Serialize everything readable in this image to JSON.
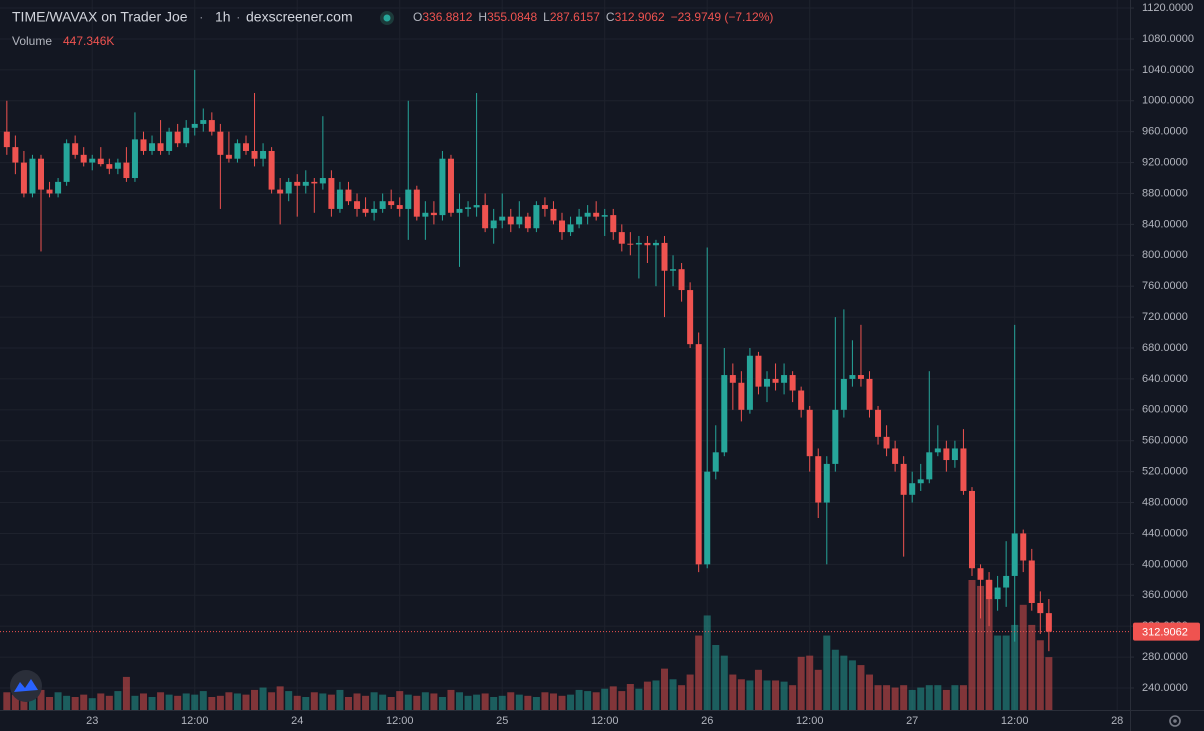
{
  "chart_data": {
    "type": "candlestick",
    "title": "TIME/WAVAX on Trader Joe",
    "interval": "1h",
    "source": "dexscreener.com",
    "ohlc_keys": [
      "O",
      "H",
      "L",
      "C"
    ],
    "change": "−23.9749 (−7.12%)",
    "volume_title": "Volume",
    "volume_label": "447.346K",
    "colors": {
      "up": "#26a69a",
      "down": "#ef5350"
    },
    "xlim": [
      -0.8,
      131.5
    ],
    "xticks": [
      {
        "value": 10,
        "label": "23"
      },
      {
        "value": 22,
        "label": "12:00"
      },
      {
        "value": 34,
        "label": "24"
      },
      {
        "value": 46,
        "label": "12:00"
      },
      {
        "value": 58,
        "label": "25"
      },
      {
        "value": 70,
        "label": "12:00"
      },
      {
        "value": 82,
        "label": "26"
      },
      {
        "value": 94,
        "label": "12:00"
      },
      {
        "value": 106,
        "label": "27"
      },
      {
        "value": 118,
        "label": "12:00"
      },
      {
        "value": 130,
        "label": "28"
      }
    ],
    "ylim": [
      211.5,
      1130.4
    ],
    "yticks": [
      {
        "value": 240,
        "label": "240.0000"
      },
      {
        "value": 280,
        "label": "280.0000"
      },
      {
        "value": 320,
        "label": "320.0000"
      },
      {
        "value": 360,
        "label": "360.0000"
      },
      {
        "value": 400,
        "label": "400.0000"
      },
      {
        "value": 440,
        "label": "440.0000"
      },
      {
        "value": 480,
        "label": "480.0000"
      },
      {
        "value": 520,
        "label": "520.0000"
      },
      {
        "value": 560,
        "label": "560.0000"
      },
      {
        "value": 600,
        "label": "600.0000"
      },
      {
        "value": 640,
        "label": "640.0000"
      },
      {
        "value": 680,
        "label": "680.0000"
      },
      {
        "value": 720,
        "label": "720.0000"
      },
      {
        "value": 760,
        "label": "760.0000"
      },
      {
        "value": 800,
        "label": "800.0000"
      },
      {
        "value": 840,
        "label": "840.0000"
      },
      {
        "value": 880,
        "label": "880.0000"
      },
      {
        "value": 920,
        "label": "920.0000"
      },
      {
        "value": 960,
        "label": "960.0000"
      },
      {
        "value": 1000,
        "label": "1000.0000"
      },
      {
        "value": 1040,
        "label": "1040.0000"
      },
      {
        "value": 1080,
        "label": "1080.0000"
      },
      {
        "value": 1120,
        "label": "1120.0000"
      }
    ],
    "candles": [
      [
        960,
        1000,
        930,
        940
      ],
      [
        940,
        955,
        905,
        920
      ],
      [
        920,
        935,
        875,
        880
      ],
      [
        880,
        930,
        875,
        925
      ],
      [
        925,
        930,
        805,
        885
      ],
      [
        885,
        895,
        875,
        880
      ],
      [
        880,
        900,
        875,
        895
      ],
      [
        895,
        950,
        890,
        945
      ],
      [
        945,
        955,
        925,
        930
      ],
      [
        930,
        940,
        915,
        920
      ],
      [
        920,
        930,
        910,
        925
      ],
      [
        925,
        940,
        915,
        918
      ],
      [
        918,
        925,
        905,
        912
      ],
      [
        912,
        925,
        905,
        920
      ],
      [
        920,
        940,
        895,
        900
      ],
      [
        900,
        985,
        895,
        950
      ],
      [
        950,
        960,
        930,
        935
      ],
      [
        935,
        955,
        930,
        945
      ],
      [
        945,
        975,
        930,
        935
      ],
      [
        935,
        965,
        930,
        960
      ],
      [
        960,
        970,
        940,
        945
      ],
      [
        945,
        975,
        940,
        965
      ],
      [
        965,
        1040,
        955,
        970
      ],
      [
        970,
        990,
        960,
        975
      ],
      [
        975,
        985,
        955,
        960
      ],
      [
        960,
        970,
        860,
        930
      ],
      [
        930,
        960,
        920,
        925
      ],
      [
        925,
        950,
        920,
        945
      ],
      [
        945,
        955,
        930,
        935
      ],
      [
        935,
        1010,
        915,
        925
      ],
      [
        925,
        945,
        915,
        935
      ],
      [
        935,
        940,
        880,
        885
      ],
      [
        885,
        900,
        840,
        880
      ],
      [
        880,
        900,
        870,
        895
      ],
      [
        895,
        905,
        850,
        890
      ],
      [
        890,
        910,
        880,
        895
      ],
      [
        895,
        900,
        855,
        893
      ],
      [
        893,
        980,
        885,
        900
      ],
      [
        900,
        910,
        850,
        860
      ],
      [
        860,
        895,
        855,
        885
      ],
      [
        885,
        895,
        865,
        870
      ],
      [
        870,
        880,
        850,
        860
      ],
      [
        860,
        875,
        850,
        855
      ],
      [
        855,
        870,
        845,
        860
      ],
      [
        860,
        880,
        855,
        870
      ],
      [
        870,
        885,
        860,
        865
      ],
      [
        865,
        875,
        850,
        860
      ],
      [
        860,
        1000,
        820,
        885
      ],
      [
        885,
        890,
        845,
        850
      ],
      [
        850,
        870,
        820,
        855
      ],
      [
        855,
        870,
        840,
        852
      ],
      [
        852,
        935,
        845,
        925
      ],
      [
        925,
        930,
        850,
        855
      ],
      [
        855,
        880,
        785,
        860
      ],
      [
        860,
        870,
        850,
        862
      ],
      [
        862,
        1010,
        850,
        865
      ],
      [
        865,
        880,
        830,
        835
      ],
      [
        835,
        860,
        815,
        845
      ],
      [
        845,
        880,
        835,
        850
      ],
      [
        850,
        860,
        830,
        840
      ],
      [
        840,
        870,
        835,
        850
      ],
      [
        850,
        855,
        830,
        835
      ],
      [
        835,
        870,
        830,
        865
      ],
      [
        865,
        875,
        850,
        860
      ],
      [
        860,
        870,
        840,
        845
      ],
      [
        845,
        855,
        820,
        830
      ],
      [
        830,
        850,
        825,
        840
      ],
      [
        840,
        860,
        835,
        850
      ],
      [
        850,
        865,
        840,
        855
      ],
      [
        855,
        870,
        845,
        850
      ],
      [
        850,
        860,
        825,
        852
      ],
      [
        852,
        860,
        820,
        830
      ],
      [
        830,
        840,
        805,
        815
      ],
      [
        815,
        830,
        800,
        814
      ],
      [
        814,
        825,
        770,
        816
      ],
      [
        816,
        825,
        790,
        813
      ],
      [
        813,
        820,
        760,
        816
      ],
      [
        816,
        825,
        720,
        780
      ],
      [
        780,
        800,
        760,
        782
      ],
      [
        782,
        790,
        740,
        755
      ],
      [
        755,
        765,
        680,
        685
      ],
      [
        685,
        700,
        390,
        400
      ],
      [
        400,
        810,
        395,
        520
      ],
      [
        520,
        580,
        510,
        545
      ],
      [
        545,
        680,
        540,
        645
      ],
      [
        645,
        660,
        600,
        635
      ],
      [
        635,
        650,
        585,
        600
      ],
      [
        600,
        680,
        595,
        670
      ],
      [
        670,
        675,
        620,
        630
      ],
      [
        630,
        650,
        610,
        640
      ],
      [
        640,
        660,
        625,
        635
      ],
      [
        635,
        660,
        620,
        645
      ],
      [
        645,
        650,
        610,
        625
      ],
      [
        625,
        630,
        590,
        600
      ],
      [
        600,
        605,
        520,
        540
      ],
      [
        540,
        550,
        460,
        480
      ],
      [
        480,
        540,
        400,
        530
      ],
      [
        530,
        720,
        520,
        600
      ],
      [
        600,
        730,
        590,
        640
      ],
      [
        640,
        690,
        630,
        645
      ],
      [
        645,
        710,
        630,
        640
      ],
      [
        640,
        650,
        590,
        600
      ],
      [
        600,
        605,
        555,
        565
      ],
      [
        565,
        580,
        540,
        550
      ],
      [
        550,
        560,
        520,
        530
      ],
      [
        530,
        540,
        410,
        490
      ],
      [
        490,
        520,
        480,
        505
      ],
      [
        505,
        530,
        495,
        510
      ],
      [
        510,
        650,
        505,
        545
      ],
      [
        545,
        580,
        540,
        550
      ],
      [
        550,
        560,
        520,
        535
      ],
      [
        535,
        560,
        525,
        550
      ],
      [
        550,
        575,
        490,
        495
      ],
      [
        495,
        500,
        385,
        395
      ],
      [
        395,
        400,
        330,
        380
      ],
      [
        380,
        390,
        320,
        355
      ],
      [
        355,
        385,
        340,
        370
      ],
      [
        370,
        430,
        345,
        385
      ],
      [
        385,
        710,
        300,
        440
      ],
      [
        440,
        445,
        390,
        405
      ],
      [
        405,
        420,
        340,
        350
      ],
      [
        350,
        365,
        310,
        336.8812
      ],
      [
        336.8812,
        355.0848,
        287.6157,
        312.9062
      ]
    ],
    "volumes": [
      150,
      130,
      120,
      140,
      170,
      110,
      150,
      120,
      110,
      130,
      100,
      140,
      120,
      160,
      280,
      120,
      140,
      110,
      150,
      130,
      120,
      140,
      130,
      160,
      110,
      120,
      150,
      140,
      130,
      170,
      190,
      150,
      200,
      160,
      120,
      110,
      150,
      140,
      130,
      170,
      110,
      140,
      120,
      150,
      130,
      110,
      160,
      130,
      120,
      150,
      140,
      110,
      170,
      150,
      120,
      130,
      140,
      110,
      120,
      150,
      130,
      120,
      110,
      150,
      140,
      120,
      130,
      170,
      160,
      150,
      180,
      200,
      160,
      220,
      180,
      240,
      250,
      350,
      260,
      210,
      300,
      630,
      800,
      550,
      460,
      300,
      260,
      250,
      340,
      250,
      250,
      240,
      210,
      450,
      460,
      340,
      630,
      510,
      460,
      420,
      380,
      300,
      210,
      210,
      190,
      210,
      170,
      190,
      210,
      210,
      170,
      210,
      210,
      1100,
      1050,
      1100,
      630,
      630,
      720,
      890,
      720,
      590,
      447.346
    ]
  }
}
